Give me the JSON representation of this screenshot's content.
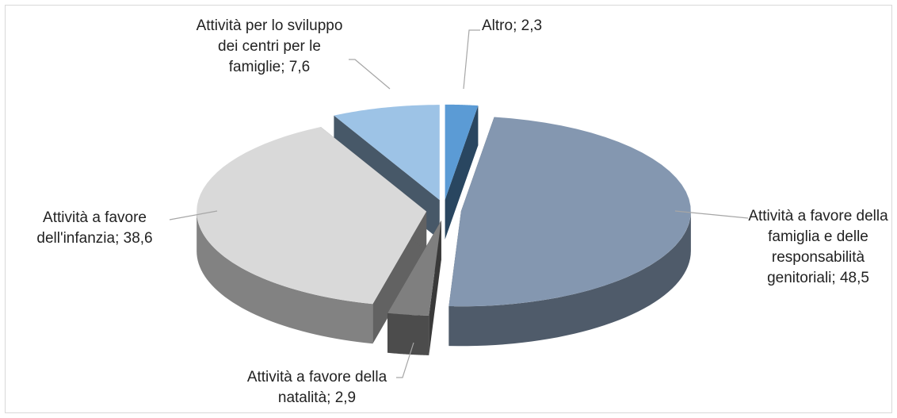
{
  "chart_data": {
    "type": "pie3d",
    "values": [
      2.3,
      48.5,
      2.9,
      38.6,
      7.6
    ],
    "value_labels": [
      "Altro; 2,3",
      "Attività a favore della famiglia e delle responsabilità genitoriali; 48,5",
      "Attività a favore della natalità; 2,9",
      "Attività a favore dell'infanzia; 38,6",
      "Attività per lo sviluppo dei centri per le famiglie; 7,6"
    ],
    "colors": [
      "#5b9bd5",
      "#8497b0",
      "#7f7f7f",
      "#d9d9d9",
      "#9dc3e6"
    ]
  }
}
